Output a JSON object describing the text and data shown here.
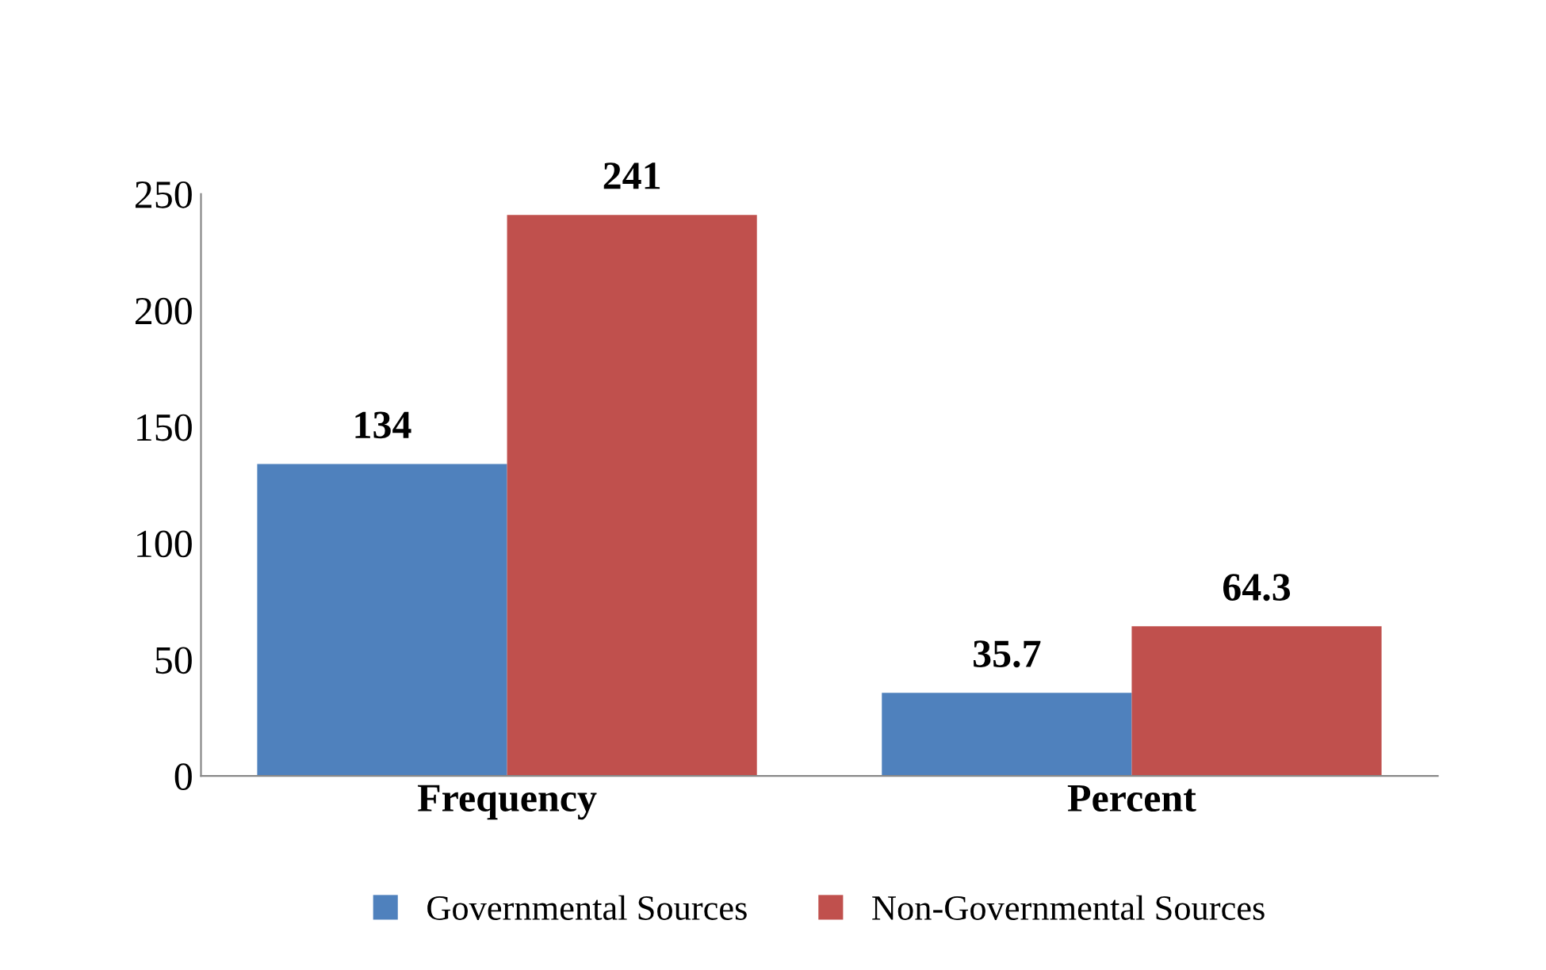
{
  "chart_data": {
    "type": "bar",
    "categories": [
      "Frequency",
      "Percent"
    ],
    "series": [
      {
        "name": "Governmental Sources",
        "color": "#4f81bd",
        "values": [
          134,
          35.7
        ]
      },
      {
        "name": "Non-Governmental Sources",
        "color": "#c0504d",
        "values": [
          241,
          64.3
        ]
      }
    ],
    "ylim": [
      0,
      250
    ],
    "yticks": [
      0,
      50,
      100,
      150,
      200,
      250
    ],
    "data_labels": true,
    "legend": "bottom",
    "grid": false
  }
}
